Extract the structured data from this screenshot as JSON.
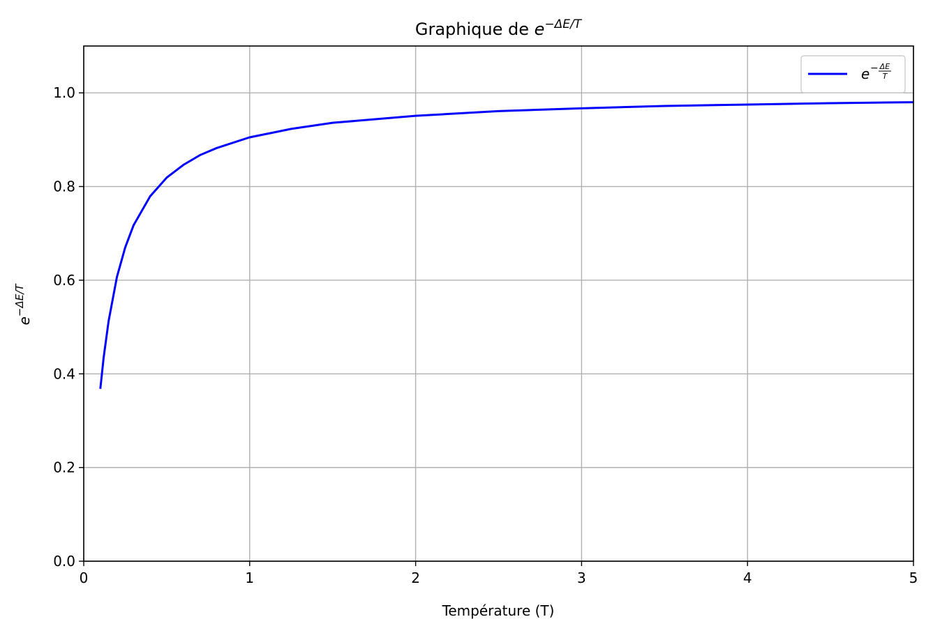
{
  "chart_data": {
    "type": "line",
    "title": {
      "text": "Graphique de",
      "base": "e",
      "exponent": "−ΔE/T"
    },
    "x_label": "Température (T)",
    "y_label": {
      "base": "e",
      "exponent": "−ΔE/T"
    },
    "x": [
      0.1,
      0.12,
      0.15,
      0.2,
      0.25,
      0.3,
      0.4,
      0.5,
      0.6,
      0.7,
      0.8,
      1.0,
      1.25,
      1.5,
      2,
      2.5,
      3,
      3.5,
      4,
      4.5,
      5
    ],
    "series": [
      {
        "name": {
          "base": "e",
          "sign": "−",
          "numerator": "ΔE",
          "denominator": "T"
        },
        "color": "#0000ff",
        "values": [
          0.368,
          0.435,
          0.513,
          0.607,
          0.67,
          0.717,
          0.779,
          0.819,
          0.846,
          0.867,
          0.882,
          0.905,
          0.923,
          0.936,
          0.951,
          0.961,
          0.967,
          0.972,
          0.975,
          0.978,
          0.98
        ]
      }
    ],
    "xlim": [
      0,
      5
    ],
    "ylim": [
      0,
      1.1
    ],
    "xticks": [
      0,
      1,
      2,
      3,
      4,
      5
    ],
    "yticks": [
      {
        "value": 0,
        "label": "0.0"
      },
      0.2,
      0.4,
      0.6,
      0.8,
      {
        "value": 1,
        "label": "1.0"
      }
    ],
    "grid": true,
    "legend": "upper right"
  }
}
